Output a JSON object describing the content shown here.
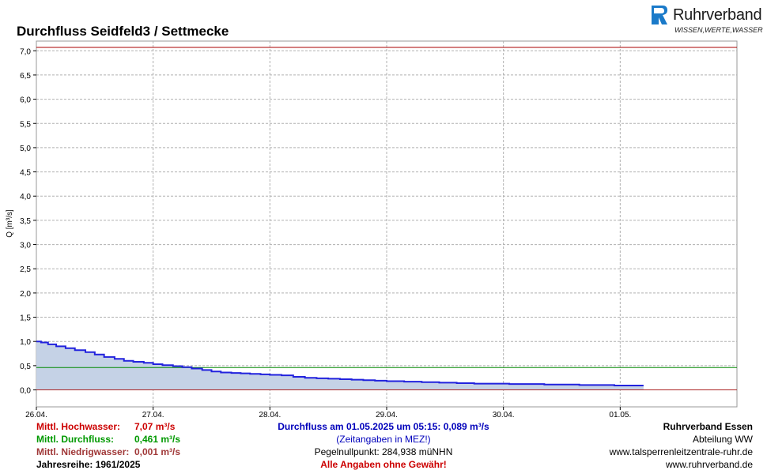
{
  "logo": {
    "name": "Ruhrverband",
    "tagline": "WISSEN,WERTE,WASSER",
    "color": "#1a7ac9"
  },
  "info": {
    "hochwasser_label": "Mittl. Hochwasser:",
    "hochwasser_value": "7,07 m³/s",
    "durchfluss_label": "Mittl. Durchfluss:",
    "durchfluss_value": "0,461 m³/s",
    "niedrigwasser_label": "Mittl. Niedrigwasser:",
    "niedrigwasser_value": "0,001 m³/s",
    "jahresreihe": "Jahresreihe: 1961/2025",
    "current": "Durchfluss am 01.05.2025 um 05:15: 0,089 m³/s",
    "zeitangaben": "(Zeitangaben in MEZ!)",
    "pegel": "Pegelnullpunkt:   284,938 müNHN",
    "disclaimer": "Alle Angaben ohne Gewähr!",
    "org": "Ruhrverband Essen",
    "abteilung": "Abteilung WW",
    "url1": "www.talsperrenleitzentrale-ruhr.de",
    "url2": "www.ruhrverband.de"
  },
  "chart_data": {
    "type": "area",
    "title": "Durchfluss Seidfeld3 / Settmecke",
    "ylabel": "Q [m³/s]",
    "xlabel": "",
    "ylim": [
      -0.35,
      7.2
    ],
    "xlim": [
      0,
      6
    ],
    "x_tick_labels": [
      "26.04.",
      "27.04.",
      "28.04.",
      "29.04.",
      "30.04.",
      "01.05."
    ],
    "x_ticks": [
      0,
      1,
      2,
      3,
      4,
      5
    ],
    "y_ticks": [
      0.0,
      0.5,
      1.0,
      1.5,
      2.0,
      2.5,
      3.0,
      3.5,
      4.0,
      4.5,
      5.0,
      5.5,
      6.0,
      6.5,
      7.0
    ],
    "y_tick_labels": [
      "0,0",
      "0,5",
      "1,0",
      "1,5",
      "2,0",
      "2,5",
      "3,0",
      "3,5",
      "4,0",
      "4,5",
      "5,0",
      "5,5",
      "6,0",
      "6,5",
      "7,0"
    ],
    "grid": true,
    "reference_lines": [
      {
        "name": "Mittl. Hochwasser",
        "value": 7.07,
        "color": "#aa0000"
      },
      {
        "name": "Mittl. Durchfluss",
        "value": 0.461,
        "color": "#008800"
      },
      {
        "name": "Mittl. Niedrigwasser",
        "value": 0.001,
        "color": "#aa2222"
      }
    ],
    "series": [
      {
        "color": "#2222dd",
        "fill": "#c5d2e6",
        "x": [
          0,
          0.04,
          0.1,
          0.17,
          0.25,
          0.33,
          0.42,
          0.5,
          0.58,
          0.67,
          0.75,
          0.83,
          0.92,
          1.0,
          1.08,
          1.17,
          1.25,
          1.33,
          1.42,
          1.5,
          1.58,
          1.67,
          1.75,
          1.83,
          1.92,
          2.0,
          2.1,
          2.2,
          2.3,
          2.4,
          2.5,
          2.6,
          2.7,
          2.8,
          2.9,
          3.0,
          3.15,
          3.3,
          3.45,
          3.6,
          3.75,
          3.9,
          4.05,
          4.2,
          4.35,
          4.5,
          4.65,
          4.8,
          4.95,
          5.1,
          5.2
        ],
        "y": [
          1.0,
          0.98,
          0.94,
          0.9,
          0.86,
          0.82,
          0.78,
          0.73,
          0.68,
          0.64,
          0.6,
          0.58,
          0.56,
          0.53,
          0.51,
          0.49,
          0.47,
          0.44,
          0.41,
          0.38,
          0.36,
          0.35,
          0.34,
          0.33,
          0.32,
          0.31,
          0.3,
          0.27,
          0.25,
          0.24,
          0.23,
          0.22,
          0.21,
          0.2,
          0.19,
          0.18,
          0.17,
          0.16,
          0.15,
          0.14,
          0.13,
          0.13,
          0.12,
          0.12,
          0.11,
          0.11,
          0.1,
          0.1,
          0.09,
          0.09,
          0.09
        ]
      }
    ]
  }
}
